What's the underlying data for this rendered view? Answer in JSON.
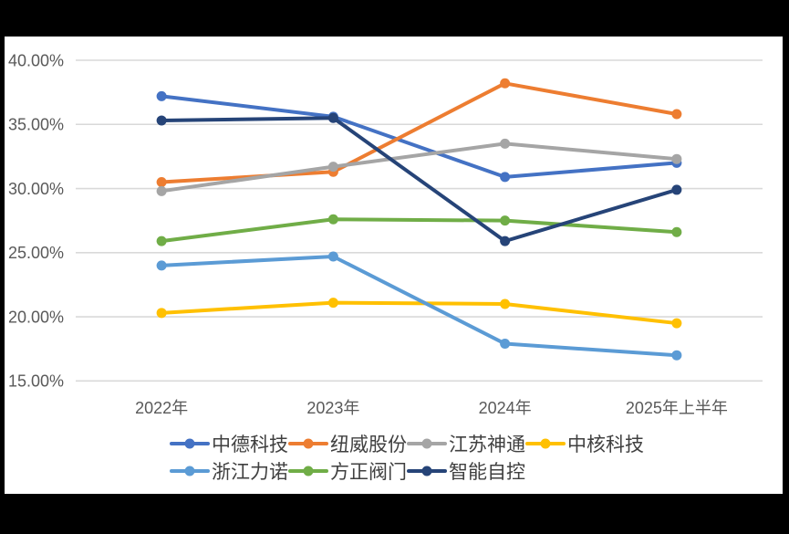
{
  "window": {
    "background_color": "#000000"
  },
  "chart": {
    "background_color": "#FFFFFF",
    "gridline_color": "#D9D9D9",
    "axis_text_color": "#595959",
    "legend_text_color": "#404040"
  },
  "chart_data": {
    "type": "line",
    "title": "",
    "xlabel": "",
    "ylabel": "",
    "grid": true,
    "legend_position": "bottom",
    "ylim": [
      15,
      40
    ],
    "y_tick_values": [
      40,
      35,
      30,
      25,
      20,
      15
    ],
    "y_tick_labels": [
      "40.00%",
      "35.00%",
      "30.00%",
      "25.00%",
      "20.00%",
      "15.00%"
    ],
    "categories": [
      "2022年",
      "2023年",
      "2024年",
      "2025年上半年"
    ],
    "series": [
      {
        "name": "中德科技",
        "color": "#4472C4",
        "values": [
          37.2,
          35.6,
          30.9,
          32.0
        ]
      },
      {
        "name": "纽威股份",
        "color": "#ED7D31",
        "values": [
          30.5,
          31.3,
          38.2,
          35.8
        ]
      },
      {
        "name": "江苏神通",
        "color": "#A5A5A5",
        "values": [
          29.8,
          31.7,
          33.5,
          32.3
        ]
      },
      {
        "name": "中核科技",
        "color": "#FFC000",
        "values": [
          20.3,
          21.1,
          21.0,
          19.5
        ]
      },
      {
        "name": "浙江力诺",
        "color": "#5B9BD5",
        "values": [
          24.0,
          24.7,
          17.9,
          17.0
        ]
      },
      {
        "name": "方正阀门",
        "color": "#70AD47",
        "values": [
          25.9,
          27.6,
          27.5,
          26.6
        ]
      },
      {
        "name": "智能自控",
        "color": "#264478",
        "values": [
          35.3,
          35.5,
          25.9,
          29.9
        ]
      }
    ],
    "legend_items_per_row": 4
  }
}
